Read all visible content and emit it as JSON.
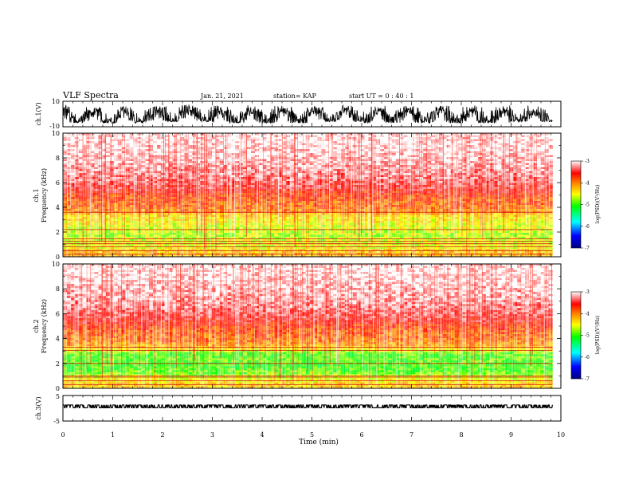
{
  "header": {
    "title": "VLF Spectra",
    "date": "Jan. 21, 2021",
    "station": "station= KAP",
    "start": "start  UT =   0 : 40 : 1"
  },
  "colors": {
    "spectrogram_ramp": [
      "#000080",
      "#0000ff",
      "#00ffff",
      "#00ff00",
      "#ffff00",
      "#ff8000",
      "#ff0000",
      "#ffffff"
    ]
  },
  "chart_data": [
    {
      "id": "ch1-waveform",
      "type": "line",
      "title": "",
      "xlabel": "",
      "ylabel": "ch.1(V)",
      "xlim": [
        0,
        10
      ],
      "ylim": [
        -10,
        10
      ],
      "yticks": [
        "10",
        "-10"
      ],
      "x_extent": [
        0,
        9.83
      ],
      "series": [
        {
          "envelope": [
            [
              -7,
              7
            ],
            [
              -7,
              7
            ],
            [
              -6,
              8
            ],
            [
              -7,
              7
            ],
            [
              -7,
              7
            ],
            [
              -6,
              7
            ],
            [
              -7,
              7
            ],
            [
              -7,
              7
            ],
            [
              -7,
              7
            ],
            [
              -6,
              7
            ],
            [
              -7,
              7
            ]
          ]
        }
      ]
    },
    {
      "id": "ch1-spectrogram",
      "type": "heatmap",
      "title": "",
      "xlabel": "",
      "ylabel": "ch.1\nFrequency (kHz)",
      "xlim": [
        0,
        10
      ],
      "ylim": [
        0,
        10
      ],
      "yticks": [
        "0",
        "2",
        "4",
        "6",
        "8",
        "10"
      ],
      "x_extent": [
        0,
        9.83
      ],
      "colorbar": {
        "label": "log(PSD)(V²/Hz)",
        "range": [
          -7,
          -3
        ],
        "ticks": [
          "-3",
          "-4",
          "-5",
          "-6",
          "-7"
        ]
      },
      "log_psd_profile": [
        {
          "freq_khz": 0.25,
          "log_psd": -4.2
        },
        {
          "freq_khz": 0.75,
          "log_psd": -4.5
        },
        {
          "freq_khz": 1.25,
          "log_psd": -4.6
        },
        {
          "freq_khz": 1.75,
          "log_psd": -4.7
        },
        {
          "freq_khz": 2.25,
          "log_psd": -4.6
        },
        {
          "freq_khz": 2.75,
          "log_psd": -4.5
        },
        {
          "freq_khz": 3.25,
          "log_psd": -4.4
        },
        {
          "freq_khz": 3.75,
          "log_psd": -4.0
        },
        {
          "freq_khz": 4.25,
          "log_psd": -3.9
        },
        {
          "freq_khz": 4.75,
          "log_psd": -3.8
        },
        {
          "freq_khz": 5.5,
          "log_psd": -3.5
        },
        {
          "freq_khz": 6.5,
          "log_psd": -3.3
        },
        {
          "freq_khz": 7.5,
          "log_psd": -3.2
        },
        {
          "freq_khz": 8.5,
          "log_psd": -3.1
        },
        {
          "freq_khz": 9.5,
          "log_psd": -3.05
        }
      ],
      "lines_khz": [
        0.2,
        0.5,
        0.8,
        1.05,
        1.25,
        1.45,
        2.2,
        3.6
      ]
    },
    {
      "id": "ch2-spectrogram",
      "type": "heatmap",
      "title": "",
      "xlabel": "",
      "ylabel": "ch.2\nFrequency (kHz)",
      "xlim": [
        0,
        10
      ],
      "ylim": [
        0,
        10
      ],
      "yticks": [
        "0",
        "2",
        "4",
        "6",
        "8",
        "10"
      ],
      "x_extent": [
        0,
        9.83
      ],
      "colorbar": {
        "label": "log(PSD)(V²/Hz)",
        "range": [
          -7,
          -3
        ],
        "ticks": [
          "-3",
          "-4",
          "-5",
          "-6",
          "-7"
        ]
      },
      "log_psd_profile": [
        {
          "freq_khz": 0.25,
          "log_psd": -4.3
        },
        {
          "freq_khz": 0.75,
          "log_psd": -4.5
        },
        {
          "freq_khz": 1.25,
          "log_psd": -4.9
        },
        {
          "freq_khz": 1.75,
          "log_psd": -5.0
        },
        {
          "freq_khz": 2.25,
          "log_psd": -4.9
        },
        {
          "freq_khz": 2.75,
          "log_psd": -5.0
        },
        {
          "freq_khz": 3.25,
          "log_psd": -4.3
        },
        {
          "freq_khz": 3.75,
          "log_psd": -4.0
        },
        {
          "freq_khz": 4.25,
          "log_psd": -3.9
        },
        {
          "freq_khz": 4.75,
          "log_psd": -3.8
        },
        {
          "freq_khz": 5.5,
          "log_psd": -3.5
        },
        {
          "freq_khz": 6.5,
          "log_psd": -3.3
        },
        {
          "freq_khz": 7.5,
          "log_psd": -3.2
        },
        {
          "freq_khz": 8.5,
          "log_psd": -3.1
        },
        {
          "freq_khz": 9.5,
          "log_psd": -3.05
        }
      ],
      "lines_khz": [
        0.3,
        0.6,
        0.9,
        1.0,
        2.0,
        3.05,
        3.3
      ]
    },
    {
      "id": "ch3-waveform",
      "type": "line",
      "title": "",
      "xlabel": "Time (min)",
      "ylabel": "ch.3(V)",
      "xlim": [
        0,
        10
      ],
      "ylim": [
        -5,
        5
      ],
      "yticks": [
        "5",
        "-5"
      ],
      "xticks": [
        "0",
        "1",
        "2",
        "3",
        "4",
        "5",
        "6",
        "7",
        "8",
        "9",
        "10"
      ],
      "x_extent": [
        0,
        9.83
      ],
      "series": [
        {
          "envelope": [
            [
              0.2,
              1.3
            ],
            [
              0.2,
              1.3
            ],
            [
              0.2,
              1.3
            ],
            [
              0.2,
              1.3
            ],
            [
              0.2,
              1.3
            ],
            [
              0.2,
              1.3
            ],
            [
              0.2,
              1.3
            ],
            [
              0.2,
              1.3
            ],
            [
              0.2,
              1.3
            ],
            [
              0.2,
              1.3
            ],
            [
              0.2,
              1.3
            ]
          ]
        }
      ]
    }
  ]
}
